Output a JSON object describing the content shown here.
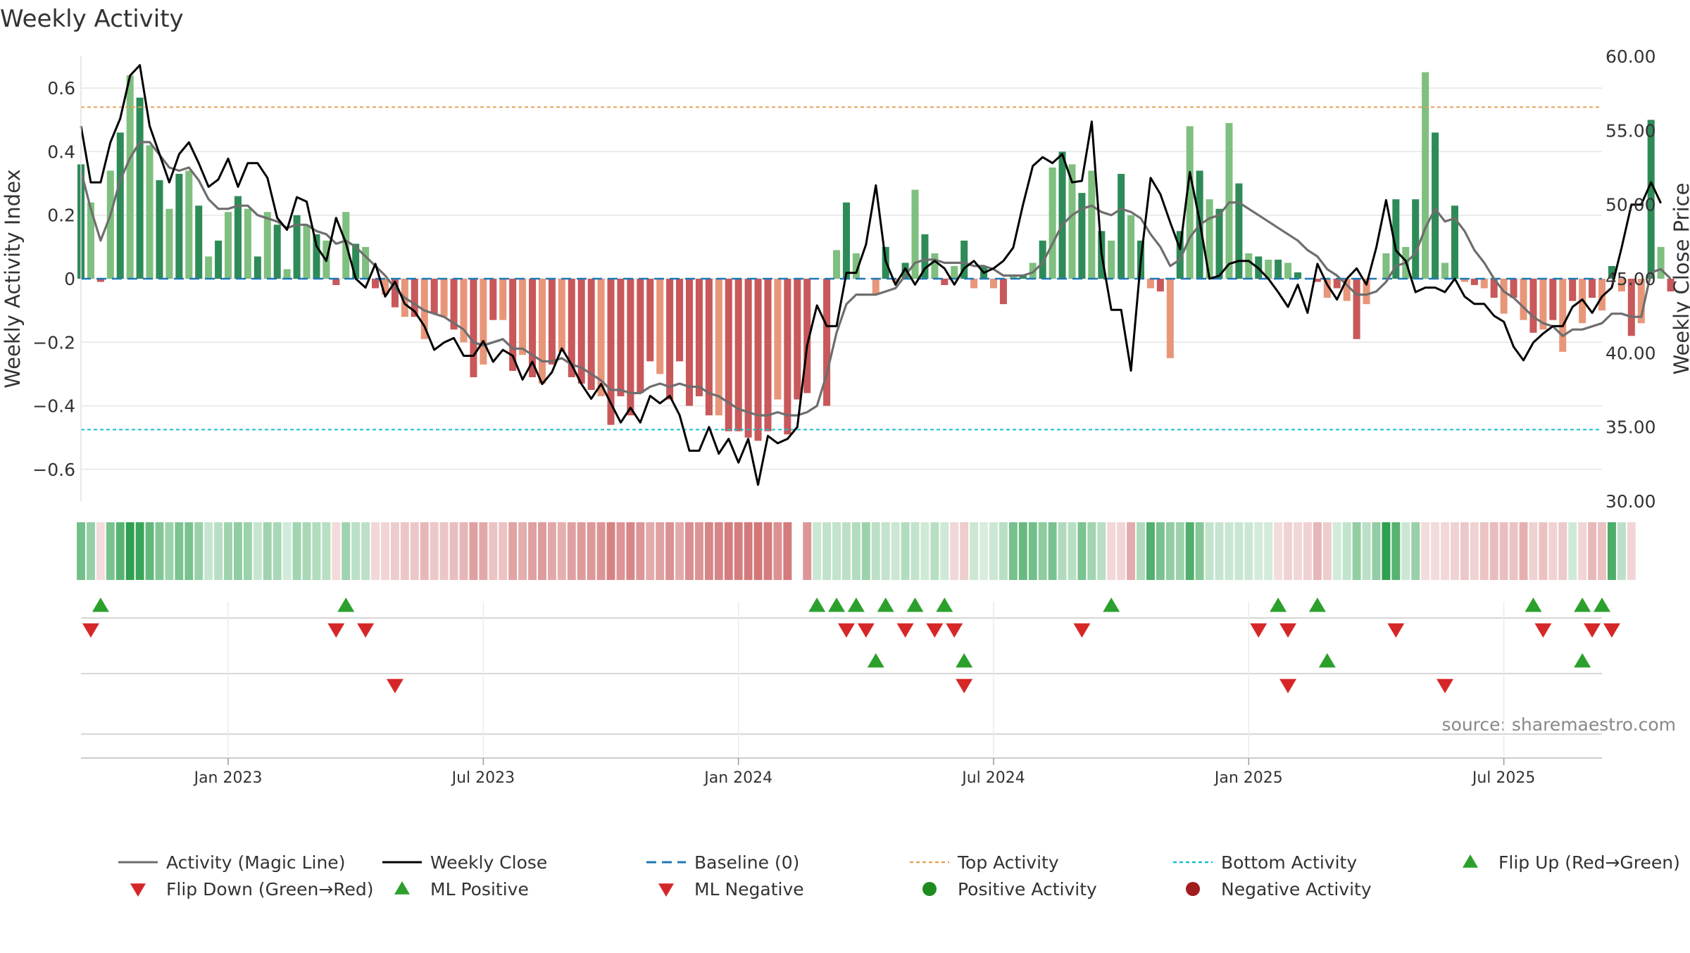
{
  "chart_data": {
    "type": "bar",
    "title": "Weekly Activity",
    "ylabel": "Weekly Activity Index",
    "ylabel_right": "Weekly Close Price",
    "source": "source: sharemaestro.com",
    "ylim": [
      -0.7,
      0.7
    ],
    "ylim_right": [
      30,
      60
    ],
    "x_range": [
      0,
      155
    ],
    "yticks": [
      {
        "v": 0.6,
        "label": "0.6"
      },
      {
        "v": 0.4,
        "label": "0.4"
      },
      {
        "v": 0.2,
        "label": "0.2"
      },
      {
        "v": 0,
        "label": "0"
      },
      {
        "v": -0.2,
        "label": "−0.2"
      },
      {
        "v": -0.4,
        "label": "−0.4"
      },
      {
        "v": -0.6,
        "label": "−0.6"
      }
    ],
    "yticks_right": [
      {
        "v": 60,
        "label": "60.00"
      },
      {
        "v": 55,
        "label": "55.00"
      },
      {
        "v": 50,
        "label": "50.00"
      },
      {
        "v": 45,
        "label": "45.00"
      },
      {
        "v": 40,
        "label": "40.00"
      },
      {
        "v": 35,
        "label": "35.00"
      },
      {
        "v": 30,
        "label": "30.00"
      }
    ],
    "xticks": [
      {
        "week": 15,
        "label": "Jan 2023"
      },
      {
        "week": 41,
        "label": "Jul 2023"
      },
      {
        "week": 67,
        "label": "Jan 2024"
      },
      {
        "week": 93,
        "label": "Jul 2024"
      },
      {
        "week": 119,
        "label": "Jan 2025"
      },
      {
        "week": 145,
        "label": "Jul 2025"
      }
    ],
    "top_activity": 0.54,
    "bottom_activity": -0.475,
    "baseline": 0,
    "activity": [
      0.36,
      0.24,
      -0.01,
      0.34,
      0.46,
      0.64,
      0.57,
      0.42,
      0.31,
      0.22,
      0.33,
      0.34,
      0.23,
      0.07,
      0.12,
      0.21,
      0.26,
      0.22,
      0.07,
      0.21,
      0.17,
      0.03,
      0.2,
      0.17,
      0.14,
      0.12,
      -0.02,
      0.21,
      0.11,
      0.1,
      -0.03,
      -0.05,
      -0.09,
      -0.12,
      -0.12,
      -0.19,
      -0.11,
      -0.12,
      -0.16,
      -0.2,
      -0.31,
      -0.27,
      -0.13,
      -0.13,
      -0.29,
      -0.24,
      -0.31,
      -0.33,
      -0.27,
      -0.23,
      -0.31,
      -0.33,
      -0.35,
      -0.37,
      -0.46,
      -0.37,
      -0.43,
      -0.36,
      -0.26,
      -0.3,
      -0.38,
      -0.26,
      -0.4,
      -0.37,
      -0.43,
      -0.43,
      -0.48,
      -0.48,
      -0.5,
      -0.51,
      -0.48,
      -0.38,
      -0.49,
      -0.38,
      -0.36,
      0,
      -0.4,
      0.09,
      0.24,
      0.08,
      0,
      -0.05,
      0.1,
      -0.01,
      0.05,
      0.28,
      0.14,
      0.08,
      -0.02,
      0.04,
      0.12,
      -0.03,
      0.04,
      -0.03,
      -0.08,
      0.01,
      0.01,
      0.05,
      0.12,
      0.35,
      0.4,
      0.36,
      0.27,
      0.34,
      0.15,
      0.12,
      0.33,
      0.2,
      0.12,
      -0.03,
      -0.04,
      -0.25,
      0.15,
      0.48,
      0.34,
      0.25,
      0.22,
      0.49,
      0.3,
      0.08,
      0.07,
      0.06,
      0.06,
      0.05,
      0.02,
      0,
      -0.01,
      -0.06,
      -0.03,
      -0.07,
      -0.19,
      -0.08,
      0,
      0.08,
      0.25,
      0.1,
      0.25,
      0.65,
      0.46,
      0.05,
      0.23,
      -0.01,
      -0.02,
      -0.03,
      -0.06,
      -0.11,
      -0.06,
      -0.13,
      -0.17,
      -0.16,
      -0.13,
      -0.23,
      -0.07,
      -0.14,
      -0.06,
      -0.1,
      0.04,
      -0.04,
      -0.18,
      -0.14,
      0.5,
      0.1,
      -0.04
    ],
    "magic_line": [
      0.34,
      0.22,
      0.12,
      0.2,
      0.31,
      0.38,
      0.43,
      0.43,
      0.39,
      0.35,
      0.34,
      0.35,
      0.31,
      0.25,
      0.22,
      0.22,
      0.23,
      0.23,
      0.2,
      0.19,
      0.18,
      0.16,
      0.17,
      0.17,
      0.15,
      0.14,
      0.11,
      0.12,
      0.1,
      0.07,
      0.04,
      0.01,
      -0.03,
      -0.06,
      -0.08,
      -0.1,
      -0.11,
      -0.12,
      -0.14,
      -0.16,
      -0.2,
      -0.21,
      -0.2,
      -0.19,
      -0.22,
      -0.22,
      -0.24,
      -0.26,
      -0.26,
      -0.25,
      -0.27,
      -0.28,
      -0.3,
      -0.32,
      -0.35,
      -0.35,
      -0.36,
      -0.36,
      -0.34,
      -0.33,
      -0.34,
      -0.33,
      -0.34,
      -0.34,
      -0.36,
      -0.37,
      -0.39,
      -0.41,
      -0.42,
      -0.43,
      -0.43,
      -0.42,
      -0.43,
      -0.43,
      -0.42,
      -0.4,
      -0.3,
      -0.17,
      -0.08,
      -0.05,
      -0.05,
      -0.05,
      -0.04,
      -0.03,
      0.01,
      0.05,
      0.06,
      0.06,
      0.05,
      0.05,
      0.05,
      0.04,
      0.04,
      0.03,
      0.01,
      0.01,
      0.01,
      0.02,
      0.05,
      0.11,
      0.17,
      0.2,
      0.22,
      0.23,
      0.21,
      0.2,
      0.22,
      0.21,
      0.19,
      0.14,
      0.1,
      0.04,
      0.06,
      0.13,
      0.17,
      0.19,
      0.2,
      0.24,
      0.24,
      0.22,
      0.2,
      0.18,
      0.16,
      0.14,
      0.12,
      0.09,
      0.07,
      0.03,
      0.01,
      -0.02,
      -0.05,
      -0.05,
      -0.04,
      -0.01,
      0.04,
      0.05,
      0.08,
      0.16,
      0.22,
      0.18,
      0.19,
      0.15,
      0.09,
      0.05,
      0,
      -0.04,
      -0.06,
      -0.09,
      -0.12,
      -0.14,
      -0.15,
      -0.18,
      -0.16,
      -0.16,
      -0.15,
      -0.14,
      -0.11,
      -0.11,
      -0.12,
      -0.12,
      0.02,
      0.03,
      0
    ],
    "weekly_close": [
      55.3,
      51.5,
      51.5,
      54.2,
      55.8,
      58.7,
      59.4,
      55.3,
      53.4,
      51.5,
      53.4,
      54.2,
      52.8,
      51.2,
      51.7,
      53.1,
      51.2,
      52.8,
      52.8,
      51.8,
      49.1,
      48.3,
      50.5,
      50.2,
      47.2,
      46.2,
      49.1,
      47.4,
      45.0,
      44.4,
      46.0,
      43.8,
      44.8,
      43.3,
      42.8,
      41.8,
      40.2,
      40.7,
      41.0,
      39.8,
      39.8,
      40.8,
      39.4,
      40.2,
      39.8,
      38.2,
      39.4,
      37.9,
      38.7,
      40.3,
      39.2,
      37.9,
      36.9,
      37.9,
      36.6,
      35.3,
      36.3,
      35.3,
      37.1,
      36.6,
      37.1,
      35.8,
      33.4,
      33.4,
      35.0,
      33.2,
      34.2,
      32.6,
      34.2,
      31.1,
      34.4,
      33.9,
      34.2,
      35.0,
      40.5,
      43.2,
      41.8,
      41.8,
      45.4,
      45.4,
      47.3,
      51.3,
      46.2,
      44.6,
      45.7,
      44.6,
      45.7,
      46.2,
      45.7,
      44.6,
      45.7,
      46.2,
      45.4,
      45.7,
      46.2,
      47.1,
      50.0,
      52.6,
      53.2,
      52.8,
      53.4,
      51.5,
      51.6,
      55.6,
      46.7,
      42.9,
      42.9,
      38.8,
      46.2,
      51.8,
      50.7,
      48.8,
      47.0,
      52.2,
      48.9,
      45.0,
      45.2,
      46.0,
      46.2,
      46.2,
      45.7,
      45.0,
      44.1,
      43.1,
      44.6,
      42.7,
      46.0,
      44.6,
      43.6,
      45.0,
      45.7,
      44.6,
      47.1,
      50.3,
      46.9,
      46.2,
      44.1,
      44.4,
      44.4,
      44.1,
      45.0,
      43.8,
      43.3,
      43.3,
      42.5,
      42.1,
      40.4,
      39.5,
      40.7,
      41.3,
      41.8,
      41.8,
      43.1,
      43.6,
      42.7,
      43.8,
      44.4,
      47.1,
      50.0,
      50.0,
      51.5,
      50.1
    ],
    "flip_up": [
      2,
      27,
      75,
      77,
      79,
      82,
      85,
      88,
      105,
      122,
      126,
      148,
      153,
      155
    ],
    "flip_down": [
      1,
      26,
      29,
      78,
      80,
      84,
      87,
      89,
      102,
      120,
      123,
      134,
      149,
      154,
      156
    ],
    "ml_positive": [
      81,
      90,
      127,
      153
    ],
    "ml_negative": [
      32,
      90,
      123,
      139
    ],
    "heatmap": [
      0.36,
      0.24,
      -0.01,
      0.34,
      0.46,
      0.64,
      0.57,
      0.42,
      0.31,
      0.22,
      0.33,
      0.34,
      0.23,
      0.07,
      0.12,
      0.21,
      0.26,
      0.22,
      0.07,
      0.21,
      0.17,
      0.03,
      0.2,
      0.17,
      0.14,
      0.12,
      -0.02,
      0.21,
      0.11,
      0.1,
      -0.03,
      -0.05,
      -0.09,
      -0.12,
      -0.12,
      -0.19,
      -0.11,
      -0.12,
      -0.16,
      -0.2,
      -0.31,
      -0.27,
      -0.13,
      -0.13,
      -0.29,
      -0.24,
      -0.31,
      -0.33,
      -0.27,
      -0.23,
      -0.31,
      -0.33,
      -0.35,
      -0.37,
      -0.46,
      -0.37,
      -0.43,
      -0.36,
      -0.26,
      -0.3,
      -0.38,
      -0.26,
      -0.4,
      -0.37,
      -0.43,
      -0.43,
      -0.48,
      -0.48,
      -0.5,
      -0.51,
      -0.48,
      -0.38,
      -0.49,
      null,
      -0.36,
      0.05,
      0.09,
      0.08,
      0.1,
      0.14,
      0.22,
      0.1,
      0.08,
      0.05,
      0.14,
      0.08,
      0.04,
      0.12,
      0.04,
      -0.03,
      -0.08,
      0.05,
      0.01,
      0.05,
      0.12,
      0.35,
      0.4,
      0.36,
      0.27,
      0.34,
      0.15,
      0.12,
      0.33,
      0.2,
      0.12,
      -0.03,
      -0.04,
      -0.25,
      0.15,
      0.48,
      0.34,
      0.25,
      0.22,
      0.49,
      0.3,
      0.08,
      0.07,
      0.06,
      0.06,
      0.05,
      0.02,
      0.02,
      -0.01,
      -0.06,
      -0.03,
      -0.07,
      -0.19,
      -0.08,
      0.02,
      0.08,
      0.25,
      0.1,
      0.25,
      0.65,
      0.46,
      0.05,
      0.23,
      -0.01,
      -0.02,
      -0.03,
      -0.06,
      -0.11,
      -0.06,
      -0.13,
      -0.17,
      -0.16,
      -0.13,
      -0.23,
      -0.07,
      -0.14,
      -0.06,
      -0.1,
      0.04,
      -0.04,
      -0.18,
      -0.14,
      0.5,
      0.1,
      -0.04
    ],
    "colors": {
      "strong_green": "#2e8b57",
      "light_green": "#7fbf7f",
      "strong_red": "#c8585a",
      "light_red": "#e8967a",
      "magic_line": "#6e6e6e",
      "close": "#000000",
      "baseline": "#1f77b4",
      "top": "#e6a25a",
      "bottom": "#17becf",
      "marker_green": "#2ca02c",
      "marker_red": "#d62728",
      "pos_dot": "#1f8b1f",
      "neg_dot": "#a11d1d",
      "grid": "#e6e6e6",
      "axis_text": "#333333"
    },
    "legend": [
      {
        "key": "magic",
        "label": "Activity (Magic Line)"
      },
      {
        "key": "close",
        "label": "Weekly Close"
      },
      {
        "key": "baseline",
        "label": "Baseline (0)"
      },
      {
        "key": "top",
        "label": "Top Activity"
      },
      {
        "key": "bottom",
        "label": "Bottom Activity"
      },
      {
        "key": "flip_up",
        "label": "Flip Up (Red→Green)"
      },
      {
        "key": "flip_down",
        "label": "Flip Down (Green→Red)"
      },
      {
        "key": "ml_pos",
        "label": "ML Positive"
      },
      {
        "key": "ml_neg",
        "label": "ML Negative"
      },
      {
        "key": "pos_act",
        "label": "Positive Activity"
      },
      {
        "key": "neg_act",
        "label": "Negative Activity"
      }
    ]
  }
}
